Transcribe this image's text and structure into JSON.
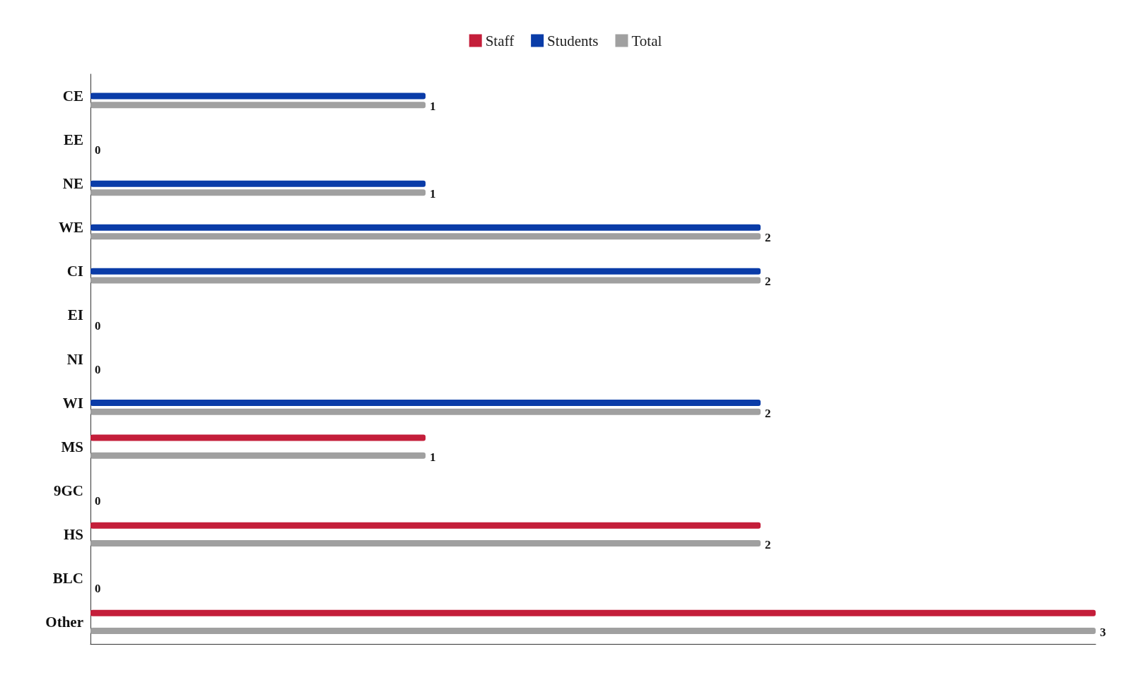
{
  "chart_data": {
    "type": "bar",
    "orientation": "horizontal",
    "categories": [
      "CE",
      "EE",
      "NE",
      "WE",
      "CI",
      "EI",
      "NI",
      "WI",
      "MS",
      "9GC",
      "HS",
      "BLC",
      "Other"
    ],
    "series": [
      {
        "name": "Staff",
        "color": "#c41e3a",
        "values": [
          0,
          0,
          0,
          0,
          0,
          0,
          0,
          0,
          1,
          0,
          2,
          0,
          3
        ]
      },
      {
        "name": "Students",
        "color": "#0a3ca8",
        "values": [
          1,
          0,
          1,
          2,
          2,
          0,
          0,
          2,
          0,
          0,
          0,
          0,
          0
        ]
      },
      {
        "name": "Total",
        "color": "#a0a0a0",
        "values": [
          1,
          0,
          1,
          2,
          2,
          0,
          0,
          2,
          1,
          0,
          2,
          0,
          3
        ],
        "value_labels": [
          "1",
          "0",
          "1",
          "2",
          "2",
          "0",
          "0",
          "2",
          "1",
          "0",
          "2",
          "0",
          "3"
        ]
      }
    ],
    "xlim": [
      0,
      3
    ],
    "tick_labels": "y",
    "grid": false,
    "legend": "top"
  }
}
